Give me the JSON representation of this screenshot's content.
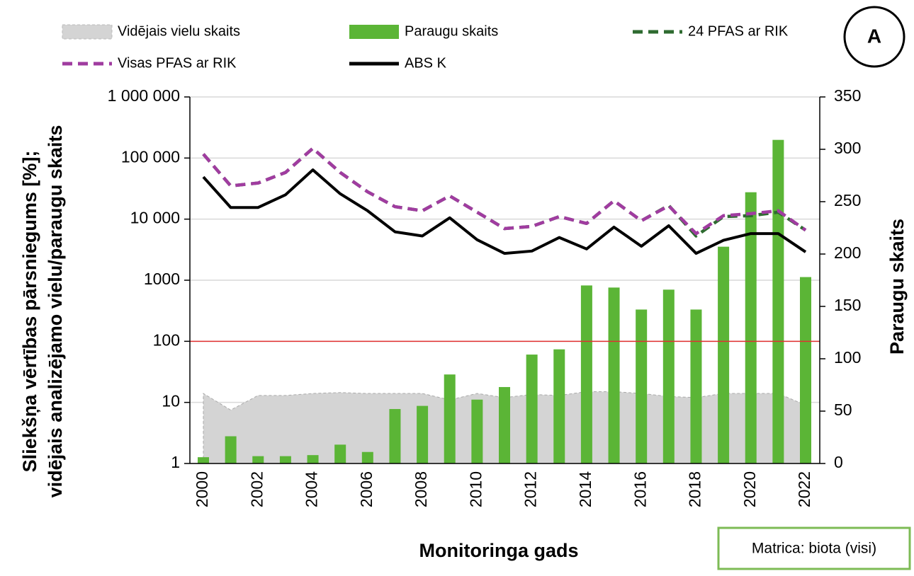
{
  "chart_data": {
    "type": "combo",
    "categories": [
      "2000",
      null,
      "2002",
      null,
      "2004",
      null,
      "2006",
      null,
      "2008",
      null,
      "2010",
      null,
      "2012",
      null,
      "2014",
      null,
      "2016",
      null,
      "2018",
      null,
      "2020",
      null,
      "2022"
    ],
    "x_label": "Monitoringa gads",
    "y_label": [
      "Sliekšņa vērtības pārsniegums [%];",
      "vidējais analizējamo vielu/paraugu skaits"
    ],
    "y2_label": "Paraugu skaits",
    "ylim": [
      1,
      1000000
    ],
    "log_y": true,
    "yticks": [
      {
        "value": 1000000,
        "label": "1 000 000"
      },
      {
        "value": 100000,
        "label": "100 000"
      },
      {
        "value": 10000,
        "label": "10 000"
      },
      1000,
      100,
      10,
      1
    ],
    "y2lim": [
      0,
      350
    ],
    "y2ticks": [
      0,
      50,
      100,
      150,
      200,
      250,
      300,
      350
    ],
    "grid": true,
    "threshold": {
      "value": 100,
      "color": "#e03030"
    },
    "series": [
      {
        "name": "Vidējais vielu skaits",
        "type": "area",
        "color": "#d4d4d4",
        "values": [
          14,
          7.5,
          13,
          13,
          14,
          14.5,
          14,
          14,
          14,
          11,
          14,
          12,
          13.5,
          13,
          15,
          15,
          14,
          12.5,
          12,
          14,
          14,
          14,
          9
        ]
      },
      {
        "name": "Paraugu skaits",
        "type": "bar",
        "axis": "y2",
        "color": "#5bb536",
        "values": [
          6,
          26,
          7,
          7,
          8,
          18,
          11,
          52,
          55,
          85,
          61,
          73,
          104,
          109,
          170,
          168,
          147,
          166,
          147,
          207,
          259,
          309,
          178
        ]
      },
      {
        "name": "24 PFAS ar RIK",
        "type": "line",
        "dash": true,
        "color": "#2e6b30",
        "values": [
          116000,
          35000,
          39000,
          58000,
          144000,
          58000,
          28000,
          16000,
          13700,
          24000,
          13000,
          7000,
          7600,
          11000,
          8500,
          20000,
          9400,
          16800,
          5300,
          11000,
          11400,
          13000,
          6600
        ]
      },
      {
        "name": "Visas PFAS ar RIK",
        "type": "line",
        "dash": true,
        "color": "#a03ca0",
        "values": [
          116000,
          35000,
          39000,
          58000,
          144000,
          58000,
          28000,
          16000,
          13700,
          24000,
          13000,
          7000,
          7600,
          11000,
          8500,
          20000,
          9400,
          16500,
          5800,
          11400,
          12300,
          13700,
          6600
        ]
      },
      {
        "name": "ABS K",
        "type": "line",
        "color": "#000000",
        "values": [
          49000,
          15500,
          15500,
          25000,
          64000,
          26000,
          13700,
          6200,
          5300,
          10500,
          4600,
          2750,
          3000,
          5000,
          3250,
          7400,
          3600,
          7800,
          2750,
          4500,
          5800,
          5800,
          2900
        ]
      }
    ],
    "badge": "A",
    "note": "Matrica: biota (visi)"
  }
}
